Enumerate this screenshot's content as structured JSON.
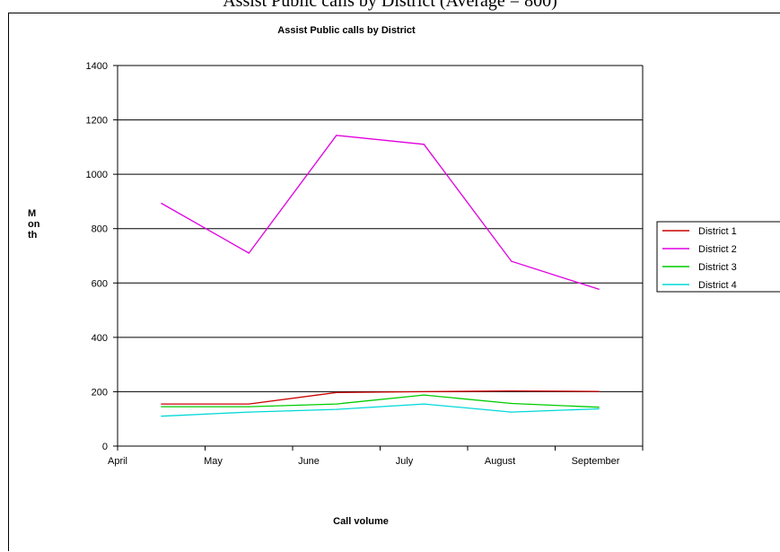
{
  "caption_fragment": "Assist Public calls by District (Average = 800)",
  "chart_data": {
    "type": "line",
    "title": "Assist Public calls by District",
    "xlabel": "Call volume",
    "ylabel_lines": [
      "M",
      "on",
      "th"
    ],
    "categories": [
      "April",
      "May",
      "June",
      "July",
      "August",
      "September"
    ],
    "ylim": [
      0,
      1400
    ],
    "yticks": [
      0,
      200,
      400,
      600,
      800,
      1000,
      1200,
      1400
    ],
    "grid": true,
    "legend_position": "right",
    "series": [
      {
        "name": "District 1",
        "color": "#cc0000",
        "values": [
          155,
          155,
          197,
          200,
          203,
          201
        ]
      },
      {
        "name": "District 2",
        "color": "#e000e0",
        "values": [
          893,
          710,
          1143,
          1110,
          680,
          577
        ]
      },
      {
        "name": "District 3",
        "color": "#00cc00",
        "values": [
          145,
          145,
          155,
          188,
          157,
          143
        ]
      },
      {
        "name": "District 4",
        "color": "#00d8d8",
        "values": [
          110,
          125,
          135,
          155,
          125,
          137
        ]
      }
    ]
  }
}
